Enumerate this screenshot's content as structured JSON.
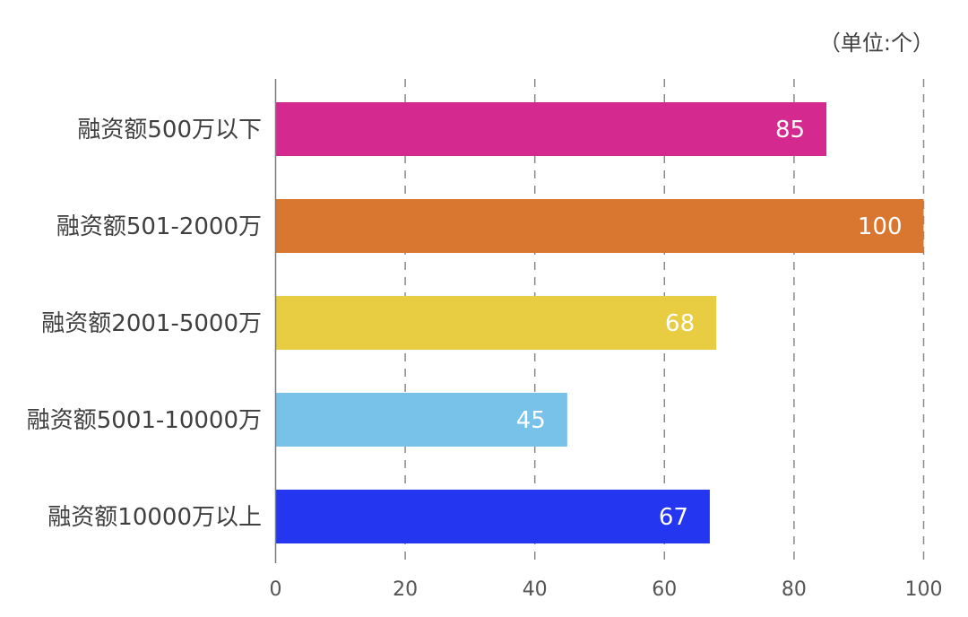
{
  "chart_data": {
    "type": "bar",
    "orientation": "horizontal",
    "unit_note": "（单位:个）",
    "categories": [
      "融资额500万以下",
      "融资额501-2000万",
      "融资额2001-5000万",
      "融资额5001-10000万",
      "融资额10000万以上"
    ],
    "values": [
      85,
      100,
      68,
      45,
      67
    ],
    "colors": [
      "#d42a90",
      "#d97731",
      "#e8cd42",
      "#78c2ea",
      "#2536f0"
    ],
    "xlim": [
      0,
      100
    ],
    "xticks": [
      0,
      20,
      40,
      60,
      80,
      100
    ],
    "grid": "vertical-dashed",
    "title": "",
    "xlabel": "",
    "ylabel": ""
  }
}
